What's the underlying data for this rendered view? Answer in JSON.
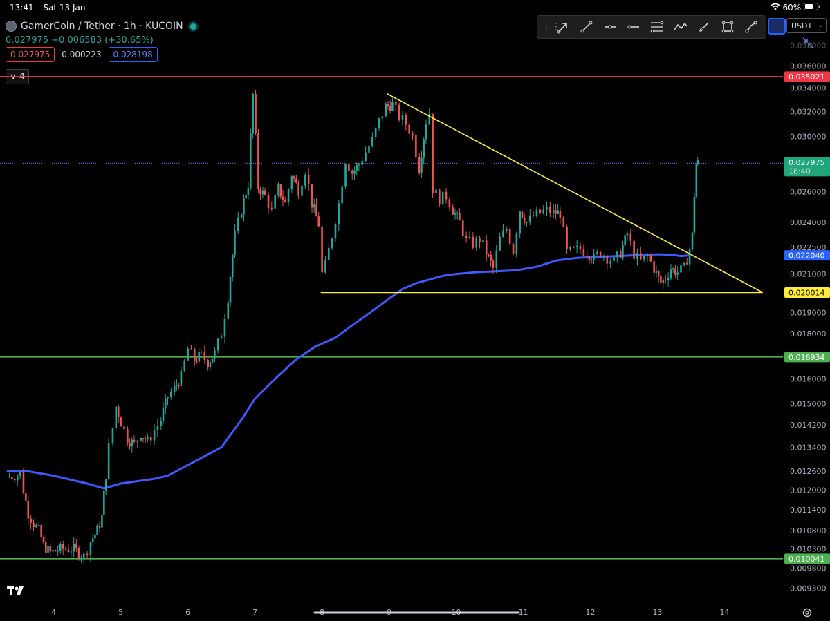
{
  "status_bar": {
    "time": "13:41",
    "date": "Sat 13 Jan",
    "battery": "60%"
  },
  "header": {
    "symbol": "GamerCoin / Tether · 1h · KUCOIN",
    "price": "0.027975",
    "change": "+0.006583 (+30.65%)",
    "bid": "0.027975",
    "spread": "0.000223",
    "ask": "0.028198",
    "indicator_count": "4"
  },
  "toolbar": {
    "tools": [
      "arrow-icon",
      "trendline-icon",
      "horizontal-ray-icon",
      "horizontal-line-icon",
      "parallel-channel-icon",
      "pattern-icon",
      "brush-icon",
      "rectangle-icon",
      "measure-icon"
    ]
  },
  "currency": {
    "label": "USDT"
  },
  "colors": {
    "up": "#26a69a",
    "down": "#ef5350",
    "ma": "#3d5afe",
    "resistance": "#f23645",
    "support": "#4caf50",
    "trend": "#ffeb3b",
    "current": "#1fa67a",
    "ma_label": "#2962ff"
  },
  "chart_data": {
    "type": "candlestick",
    "x_ticks": [
      "4",
      "5",
      "6",
      "7",
      "8",
      "9",
      "10",
      "11",
      "12",
      "13",
      "14"
    ],
    "y_ticks": [
      "0.036000",
      "0.034000",
      "0.032000",
      "0.030000",
      "0.026000",
      "0.024000",
      "0.022500",
      "0.021000",
      "0.019000",
      "0.018000",
      "0.016000",
      "0.015000",
      "0.014200",
      "0.013400",
      "0.012600",
      "0.012000",
      "0.011400",
      "0.010800",
      "0.010300",
      "0.009800",
      "0.009300"
    ],
    "y_ticks_extra": "0.038000",
    "price_labels": [
      {
        "name": "resistance",
        "value": "0.035021",
        "type": "resistance"
      },
      {
        "name": "current-price",
        "value": "0.027975",
        "sub": "18:40",
        "type": "current"
      },
      {
        "name": "ma",
        "value": "0.022040",
        "type": "ma"
      },
      {
        "name": "triangle-support",
        "value": "0.020014",
        "type": "trend"
      },
      {
        "name": "support-1",
        "value": "0.016934",
        "type": "support"
      },
      {
        "name": "support-2",
        "value": "0.010041",
        "type": "support"
      }
    ],
    "horizontal_lines": [
      {
        "name": "resistance",
        "y": 0.035021,
        "type": "resistance"
      },
      {
        "name": "support-1",
        "y": 0.016934,
        "type": "support"
      },
      {
        "name": "support-2",
        "y": 0.010041,
        "type": "support"
      }
    ],
    "trendlines": [
      {
        "name": "triangle-top",
        "x1": 8.97,
        "y1": 0.0335,
        "x2": 14.57,
        "y2": 0.020014
      },
      {
        "name": "triangle-base",
        "x1": 7.98,
        "y1": 0.020014,
        "x2": 14.57,
        "y2": 0.020014
      }
    ],
    "ma_points": [
      [
        3.3,
        0.0126
      ],
      [
        3.6,
        0.0126
      ],
      [
        4.0,
        0.01245
      ],
      [
        4.5,
        0.0122
      ],
      [
        4.75,
        0.01205
      ],
      [
        5.0,
        0.0122
      ],
      [
        5.5,
        0.01235
      ],
      [
        5.7,
        0.01245
      ],
      [
        6.0,
        0.0128
      ],
      [
        6.5,
        0.0134
      ],
      [
        6.8,
        0.0144
      ],
      [
        7.0,
        0.0152
      ],
      [
        7.3,
        0.016
      ],
      [
        7.6,
        0.0168
      ],
      [
        7.9,
        0.0174
      ],
      [
        8.2,
        0.0178
      ],
      [
        8.5,
        0.0185
      ],
      [
        8.8,
        0.0192
      ],
      [
        9.0,
        0.0197
      ],
      [
        9.2,
        0.0202
      ],
      [
        9.4,
        0.0205
      ],
      [
        9.6,
        0.0207
      ],
      [
        9.8,
        0.0209
      ],
      [
        10.0,
        0.021
      ],
      [
        10.3,
        0.0211
      ],
      [
        10.6,
        0.02115
      ],
      [
        10.9,
        0.0212
      ],
      [
        11.2,
        0.0214
      ],
      [
        11.5,
        0.02175
      ],
      [
        11.8,
        0.0219
      ],
      [
        12.1,
        0.02195
      ],
      [
        12.4,
        0.022
      ],
      [
        12.7,
        0.02205
      ],
      [
        13.0,
        0.0221
      ],
      [
        13.2,
        0.02208
      ],
      [
        13.35,
        0.022
      ],
      [
        13.48,
        0.02204
      ]
    ],
    "price_path": [
      [
        3.3,
        0.0124
      ],
      [
        3.5,
        0.0125
      ],
      [
        3.55,
        0.012
      ],
      [
        3.62,
        0.0113
      ],
      [
        3.7,
        0.011
      ],
      [
        3.78,
        0.0108
      ],
      [
        3.85,
        0.0104
      ],
      [
        3.95,
        0.0102
      ],
      [
        4.1,
        0.0103
      ],
      [
        4.3,
        0.0103
      ],
      [
        4.45,
        0.0101
      ],
      [
        4.55,
        0.0105
      ],
      [
        4.65,
        0.0108
      ],
      [
        4.72,
        0.0112
      ],
      [
        4.78,
        0.0125
      ],
      [
        4.82,
        0.0134
      ],
      [
        4.88,
        0.0141
      ],
      [
        4.93,
        0.0149
      ],
      [
        5.0,
        0.0143
      ],
      [
        5.1,
        0.0137
      ],
      [
        5.2,
        0.0135
      ],
      [
        5.3,
        0.0139
      ],
      [
        5.4,
        0.0136
      ],
      [
        5.5,
        0.014
      ],
      [
        5.6,
        0.0144
      ],
      [
        5.7,
        0.0153
      ],
      [
        5.8,
        0.0156
      ],
      [
        5.9,
        0.0161
      ],
      [
        6.0,
        0.0173
      ],
      [
        6.1,
        0.0168
      ],
      [
        6.2,
        0.017
      ],
      [
        6.3,
        0.0167
      ],
      [
        6.4,
        0.0171
      ],
      [
        6.5,
        0.018
      ],
      [
        6.6,
        0.0198
      ],
      [
        6.7,
        0.0232
      ],
      [
        6.8,
        0.0248
      ],
      [
        6.9,
        0.0265
      ],
      [
        6.97,
        0.0334
      ],
      [
        7.05,
        0.0263
      ],
      [
        7.15,
        0.0257
      ],
      [
        7.25,
        0.0247
      ],
      [
        7.35,
        0.0262
      ],
      [
        7.45,
        0.0252
      ],
      [
        7.55,
        0.0272
      ],
      [
        7.65,
        0.0261
      ],
      [
        7.75,
        0.0275
      ],
      [
        7.85,
        0.0252
      ],
      [
        7.95,
        0.0239
      ],
      [
        8.0,
        0.021
      ],
      [
        8.05,
        0.0215
      ],
      [
        8.15,
        0.0232
      ],
      [
        8.25,
        0.0252
      ],
      [
        8.35,
        0.0282
      ],
      [
        8.45,
        0.0273
      ],
      [
        8.55,
        0.0279
      ],
      [
        8.65,
        0.0288
      ],
      [
        8.75,
        0.0297
      ],
      [
        8.85,
        0.0312
      ],
      [
        8.95,
        0.0324
      ],
      [
        9.05,
        0.0326
      ],
      [
        9.15,
        0.0316
      ],
      [
        9.25,
        0.031
      ],
      [
        9.35,
        0.03
      ],
      [
        9.45,
        0.0276
      ],
      [
        9.55,
        0.0312
      ],
      [
        9.6,
        0.0319
      ],
      [
        9.65,
        0.0262
      ],
      [
        9.75,
        0.0255
      ],
      [
        9.85,
        0.0257
      ],
      [
        9.95,
        0.0248
      ],
      [
        10.05,
        0.024
      ],
      [
        10.15,
        0.0229
      ],
      [
        10.25,
        0.0227
      ],
      [
        10.35,
        0.023
      ],
      [
        10.45,
        0.0222
      ],
      [
        10.55,
        0.0213
      ],
      [
        10.65,
        0.023
      ],
      [
        10.75,
        0.0236
      ],
      [
        10.85,
        0.0223
      ],
      [
        10.95,
        0.0248
      ],
      [
        11.05,
        0.024
      ],
      [
        11.15,
        0.0244
      ],
      [
        11.25,
        0.0246
      ],
      [
        11.35,
        0.0248
      ],
      [
        11.45,
        0.0246
      ],
      [
        11.55,
        0.0246
      ],
      [
        11.65,
        0.0222
      ],
      [
        11.75,
        0.0223
      ],
      [
        11.85,
        0.0224
      ],
      [
        11.95,
        0.0222
      ],
      [
        12.05,
        0.0219
      ],
      [
        12.15,
        0.0222
      ],
      [
        12.25,
        0.0219
      ],
      [
        12.35,
        0.0217
      ],
      [
        12.45,
        0.0222
      ],
      [
        12.55,
        0.0233
      ],
      [
        12.65,
        0.0221
      ],
      [
        12.75,
        0.0217
      ],
      [
        12.85,
        0.022
      ],
      [
        12.95,
        0.0213
      ],
      [
        13.05,
        0.0205
      ],
      [
        13.12,
        0.0208
      ],
      [
        13.2,
        0.0213
      ],
      [
        13.3,
        0.0211
      ],
      [
        13.4,
        0.0213
      ],
      [
        13.48,
        0.0224
      ],
      [
        13.52,
        0.0232
      ],
      [
        13.55,
        0.0258
      ],
      [
        13.58,
        0.0279
      ],
      [
        13.6,
        0.027975
      ]
    ],
    "xlim": [
      3.2,
      14.85
    ],
    "ylim": [
      0.009,
      0.0385
    ]
  }
}
